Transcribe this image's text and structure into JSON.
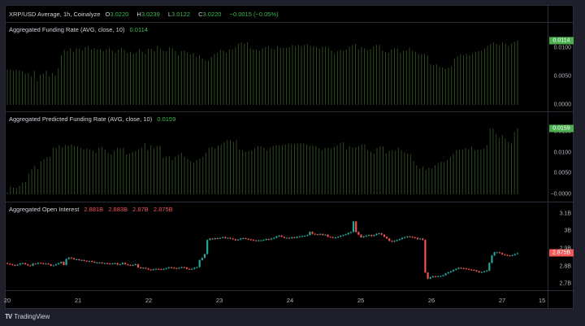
{
  "header": {
    "symbol": "XRP/USD Average, 1h, Coinalyze",
    "o_label": "O",
    "o": "3.0220",
    "h_label": "H",
    "h": "3.0239",
    "l_label": "L",
    "l": "3.0122",
    "c_label": "C",
    "c": "3.0220",
    "change": "−0.0015 (−0.05%)"
  },
  "panes": {
    "funding": {
      "title": "Aggregated Funding Rate (AVG, close, 10)",
      "value": "0.0114",
      "axis_ticks": [
        {
          "label": "0.0100",
          "v": 0.01
        },
        {
          "label": "0.0050",
          "v": 0.005
        },
        {
          "label": "0.0000",
          "v": 0.0
        }
      ],
      "current_tag": "0.0114"
    },
    "predicted": {
      "title": "Aggregated Predicted Funding Rate (AVG, close, 10)",
      "value": "0.0159",
      "axis_ticks": [
        {
          "label": "0.0150",
          "v": 0.015
        },
        {
          "label": "0.0100",
          "v": 0.01
        },
        {
          "label": "0.0050",
          "v": 0.005
        },
        {
          "label": "−0.0000",
          "v": 0.0
        }
      ],
      "current_tag": "0.0159"
    },
    "oi": {
      "title": "Aggregated Open Interest",
      "o": "2.881B",
      "h": "2.883B",
      "l": "2.87B",
      "c": "2.875B",
      "axis_ticks": [
        {
          "label": "3.1B",
          "v": 3.1
        },
        {
          "label": "3B",
          "v": 3.0
        },
        {
          "label": "2.9B",
          "v": 2.9
        },
        {
          "label": "2.8B",
          "v": 2.8
        },
        {
          "label": "2.7B",
          "v": 2.7
        }
      ],
      "current_tag": "2.875B"
    }
  },
  "time_axis": [
    "20",
    "21",
    "22",
    "23",
    "24",
    "25",
    "26",
    "27",
    "15"
  ],
  "footer": {
    "brand": "TradingView",
    "logo": "TV"
  },
  "colors": {
    "up": "#26a69a",
    "down": "#ef5350",
    "bar": "#2f4a22",
    "accent_green": "#4caf50",
    "tag_red": "#f05a5a"
  },
  "chart_data": [
    {
      "type": "bar",
      "title": "Aggregated Funding Rate (AVG, close, 10)",
      "x": "hourly bars, Jul 20 – 27",
      "ylim": [
        0,
        0.0125
      ],
      "values": [
        0.0062,
        0.0062,
        0.006,
        0.0062,
        0.0061,
        0.006,
        0.0055,
        0.0056,
        0.005,
        0.006,
        0.0042,
        0.0053,
        0.0055,
        0.006,
        0.005,
        0.0056,
        0.0052,
        0.0065,
        0.0088,
        0.0098,
        0.0095,
        0.01,
        0.0094,
        0.01,
        0.01,
        0.0096,
        0.0102,
        0.0104,
        0.0098,
        0.01,
        0.0098,
        0.0098,
        0.0095,
        0.0098,
        0.01,
        0.0096,
        0.0092,
        0.0098,
        0.0101,
        0.0098,
        0.0092,
        0.0094,
        0.009,
        0.0092,
        0.0098,
        0.0094,
        0.009,
        0.01,
        0.0099,
        0.0095,
        0.0104,
        0.01,
        0.0096,
        0.0095,
        0.0102,
        0.01,
        0.0095,
        0.0088,
        0.0095,
        0.0096,
        0.0092,
        0.0089,
        0.0092,
        0.0085,
        0.0088,
        0.0082,
        0.0078,
        0.0078,
        0.0085,
        0.009,
        0.0092,
        0.0098,
        0.0096,
        0.0092,
        0.0098,
        0.0098,
        0.0102,
        0.0108,
        0.011,
        0.0108,
        0.011,
        0.01,
        0.0098,
        0.0098,
        0.0096,
        0.01,
        0.0102,
        0.0104,
        0.01,
        0.0098,
        0.0104,
        0.0101,
        0.0101,
        0.0101,
        0.0102,
        0.0106,
        0.0104,
        0.0106,
        0.0104,
        0.0106,
        0.0107,
        0.0104,
        0.0103,
        0.0102,
        0.01,
        0.0103,
        0.0103,
        0.0101,
        0.0096,
        0.009,
        0.0095,
        0.0097,
        0.0096,
        0.0098,
        0.0103,
        0.0106,
        0.0108,
        0.0098,
        0.0102,
        0.01,
        0.0097,
        0.0098,
        0.0103,
        0.0106,
        0.0106,
        0.0096,
        0.0094,
        0.0092,
        0.0098,
        0.01,
        0.01,
        0.0092,
        0.0096,
        0.0096,
        0.0101,
        0.0096,
        0.0094,
        0.009,
        0.009,
        0.009,
        0.0088,
        0.0072,
        0.007,
        0.0072,
        0.0067,
        0.0066,
        0.0064,
        0.0066,
        0.0068,
        0.0082,
        0.0086,
        0.009,
        0.0088,
        0.009,
        0.0088,
        0.009,
        0.0094,
        0.0095,
        0.0096,
        0.01,
        0.0104,
        0.0108,
        0.011,
        0.0108,
        0.0106,
        0.011,
        0.0108,
        0.0104,
        0.0108,
        0.0112,
        0.0114
      ]
    },
    {
      "type": "bar",
      "title": "Aggregated Predicted Funding Rate (AVG, close, 10)",
      "x": "hourly bars, Jul 20 – 27",
      "ylim": [
        0,
        0.017
      ],
      "values": [
        0.0005,
        0.002,
        0.0016,
        0.0015,
        0.002,
        0.0028,
        0.003,
        0.005,
        0.006,
        0.0068,
        0.006,
        0.008,
        0.0085,
        0.009,
        0.009,
        0.0112,
        0.011,
        0.0118,
        0.0112,
        0.0118,
        0.0116,
        0.012,
        0.0116,
        0.0115,
        0.0112,
        0.0108,
        0.011,
        0.0108,
        0.0105,
        0.01,
        0.0112,
        0.0114,
        0.0108,
        0.01,
        0.0096,
        0.0104,
        0.0112,
        0.011,
        0.0112,
        0.0096,
        0.0098,
        0.0102,
        0.0104,
        0.0108,
        0.0112,
        0.0124,
        0.0106,
        0.0118,
        0.011,
        0.0116,
        0.0116,
        0.0088,
        0.009,
        0.0092,
        0.0082,
        0.009,
        0.0095,
        0.01,
        0.009,
        0.0085,
        0.008,
        0.0076,
        0.0082,
        0.0086,
        0.009,
        0.01,
        0.0112,
        0.0114,
        0.011,
        0.0118,
        0.012,
        0.0125,
        0.013,
        0.013,
        0.0126,
        0.013,
        0.0108,
        0.0106,
        0.0102,
        0.0104,
        0.0106,
        0.011,
        0.0116,
        0.0116,
        0.0112,
        0.0106,
        0.0112,
        0.0116,
        0.0118,
        0.0118,
        0.0118,
        0.012,
        0.0122,
        0.012,
        0.0121,
        0.0122,
        0.0123,
        0.0122,
        0.012,
        0.0117,
        0.0118,
        0.0116,
        0.0111,
        0.0106,
        0.0112,
        0.0112,
        0.011,
        0.0114,
        0.0118,
        0.0124,
        0.0125,
        0.0108,
        0.0115,
        0.0113,
        0.0113,
        0.0116,
        0.012,
        0.012,
        0.0106,
        0.0102,
        0.0098,
        0.0112,
        0.0115,
        0.0115,
        0.0098,
        0.0105,
        0.0106,
        0.0104,
        0.0112,
        0.0106,
        0.01,
        0.0098,
        0.0096,
        0.008,
        0.007,
        0.0062,
        0.0066,
        0.0058,
        0.0064,
        0.0062,
        0.007,
        0.0075,
        0.0078,
        0.0078,
        0.0082,
        0.009,
        0.0098,
        0.0106,
        0.0108,
        0.0108,
        0.0112,
        0.0108,
        0.0114,
        0.0106,
        0.0108,
        0.0108,
        0.011,
        0.0118,
        0.0158,
        0.0158,
        0.0145,
        0.0135,
        0.0142,
        0.0135,
        0.0126,
        0.0122,
        0.015,
        0.0159
      ]
    },
    {
      "type": "candlestick",
      "title": "Aggregated Open Interest",
      "ylim": [
        2.66,
        3.14
      ],
      "ylabel_ticks": [
        "2.7B",
        "2.8B",
        "2.9B",
        "3B",
        "3.1B"
      ],
      "x_ticks": [
        "20",
        "21",
        "22",
        "23",
        "24",
        "25",
        "26",
        "27",
        "15"
      ],
      "closes": [
        2.815,
        2.812,
        2.808,
        2.806,
        2.81,
        2.816,
        2.818,
        2.812,
        2.806,
        2.804,
        2.816,
        2.814,
        2.82,
        2.818,
        2.814,
        2.816,
        2.812,
        2.804,
        2.806,
        2.812,
        2.818,
        2.826,
        2.808,
        2.842,
        2.85,
        2.846,
        2.84,
        2.84,
        2.836,
        2.836,
        2.832,
        2.83,
        2.83,
        2.826,
        2.822,
        2.822,
        2.822,
        2.818,
        2.818,
        2.816,
        2.814,
        2.816,
        2.818,
        2.81,
        2.812,
        2.82,
        2.812,
        2.808,
        2.806,
        2.808,
        2.812,
        2.794,
        2.79,
        2.792,
        2.788,
        2.782,
        2.78,
        2.784,
        2.786,
        2.784,
        2.782,
        2.786,
        2.79,
        2.795,
        2.792,
        2.79,
        2.788,
        2.792,
        2.796,
        2.794,
        2.786,
        2.784,
        2.786,
        2.792,
        2.796,
        2.836,
        2.848,
        2.87,
        2.95,
        2.958,
        2.955,
        2.96,
        2.958,
        2.962,
        2.966,
        2.96,
        2.962,
        2.958,
        2.954,
        2.948,
        2.952,
        2.958,
        2.96,
        2.956,
        2.954,
        2.95,
        2.948,
        2.946,
        2.948,
        2.948,
        2.95,
        2.955,
        2.952,
        2.958,
        2.962,
        2.97,
        2.975,
        2.968,
        2.962,
        2.962,
        2.96,
        2.965,
        2.962,
        2.968,
        2.97,
        2.972,
        2.974,
        2.978,
        2.996,
        2.985,
        2.982,
        2.98,
        2.984,
        2.978,
        2.98,
        2.968,
        2.966,
        2.962,
        2.964,
        2.968,
        2.974,
        2.978,
        2.982,
        2.99,
        2.995,
        3.055,
        2.995,
        2.98,
        2.965,
        2.97,
        2.975,
        2.978,
        2.972,
        2.978,
        2.985,
        2.988,
        2.98,
        2.968,
        2.958,
        2.945,
        2.94,
        2.945,
        2.95,
        2.955,
        2.962,
        2.966,
        2.97,
        2.968,
        2.965,
        2.962,
        2.955,
        2.958,
        2.95,
        2.765,
        2.73,
        2.738,
        2.744,
        2.742,
        2.744,
        2.745,
        2.75,
        2.76,
        2.766,
        2.772,
        2.78,
        2.786,
        2.792,
        2.79,
        2.788,
        2.786,
        2.782,
        2.78,
        2.778,
        2.772,
        2.766,
        2.768,
        2.772,
        2.776,
        2.82,
        2.862,
        2.88,
        2.88,
        2.876,
        2.868,
        2.865,
        2.862,
        2.86,
        2.864,
        2.87,
        2.875
      ]
    }
  ]
}
